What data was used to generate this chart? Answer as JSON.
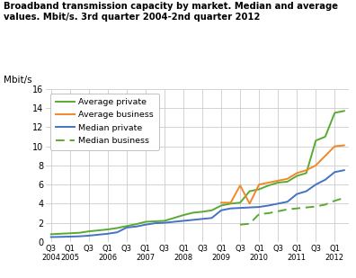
{
  "title": "Broadband transmission capacity by market. Median and average\nvalues. Mbit/s. 3rd quarter 2004-2nd quarter 2012",
  "ylabel": "Mbit/s",
  "ylim": [
    0,
    16
  ],
  "yticks": [
    0,
    2,
    4,
    6,
    8,
    10,
    12,
    14,
    16
  ],
  "avg_private_color": "#5aaa32",
  "avg_business_color": "#f0882a",
  "median_private_color": "#4472c4",
  "median_business_color": "#5aaa32",
  "grid_color": "#cccccc",
  "tick_positions": [
    0,
    2,
    4,
    6,
    8,
    10,
    12,
    14,
    16,
    18,
    20,
    22,
    24,
    26,
    28,
    30
  ],
  "tick_labels": [
    "Q3\n2004",
    "Q1\n2005",
    "Q3",
    "Q1\n2006",
    "Q3",
    "Q1\n2007",
    "Q3",
    "Q1\n2008",
    "Q3",
    "Q1\n2009",
    "Q3",
    "Q1\n2010",
    "Q3",
    "Q1\n2011",
    "Q3",
    "Q1\n2012"
  ],
  "avg_priv_x": [
    0,
    1,
    2,
    3,
    4,
    5,
    6,
    7,
    8,
    9,
    10,
    11,
    12,
    13,
    14,
    15,
    16,
    17,
    18,
    19,
    20,
    21,
    22,
    23,
    24,
    25,
    26,
    27,
    28,
    29,
    30,
    31
  ],
  "avg_priv_y": [
    0.8,
    0.85,
    0.9,
    0.95,
    1.1,
    1.2,
    1.3,
    1.45,
    1.65,
    1.85,
    2.1,
    2.15,
    2.2,
    2.5,
    2.8,
    3.05,
    3.15,
    3.3,
    3.8,
    4.0,
    4.1,
    5.3,
    5.5,
    5.9,
    6.2,
    6.3,
    6.9,
    7.2,
    10.6,
    11.0,
    13.5,
    13.7
  ],
  "avg_bus_x": [
    18,
    19,
    20,
    21,
    22,
    23,
    24,
    25,
    26,
    27,
    28,
    29,
    30,
    31
  ],
  "avg_bus_y": [
    4.1,
    4.1,
    5.9,
    4.0,
    6.0,
    6.2,
    6.4,
    6.6,
    7.2,
    7.5,
    8.0,
    9.0,
    10.0,
    10.1
  ],
  "med_priv_x": [
    0,
    1,
    2,
    3,
    4,
    5,
    6,
    7,
    8,
    9,
    10,
    11,
    12,
    13,
    14,
    15,
    16,
    17,
    18,
    19,
    20,
    21,
    22,
    23,
    24,
    25,
    26,
    27,
    28,
    29,
    30,
    31
  ],
  "med_priv_y": [
    0.5,
    0.52,
    0.55,
    0.58,
    0.65,
    0.75,
    0.85,
    1.0,
    1.5,
    1.6,
    1.8,
    1.95,
    2.0,
    2.1,
    2.2,
    2.3,
    2.4,
    2.5,
    3.3,
    3.5,
    3.55,
    3.6,
    3.65,
    3.8,
    4.0,
    4.2,
    5.0,
    5.3,
    6.0,
    6.5,
    7.3,
    7.5
  ],
  "med_bus_x": [
    20,
    21,
    22,
    23,
    24,
    25,
    26,
    27,
    28,
    29,
    30,
    31
  ],
  "med_bus_y": [
    1.8,
    1.9,
    2.9,
    3.0,
    3.2,
    3.4,
    3.5,
    3.6,
    3.7,
    3.9,
    4.3,
    4.6
  ],
  "legend_labels": [
    "Average private",
    "Average business",
    "Median private",
    "Median business"
  ]
}
